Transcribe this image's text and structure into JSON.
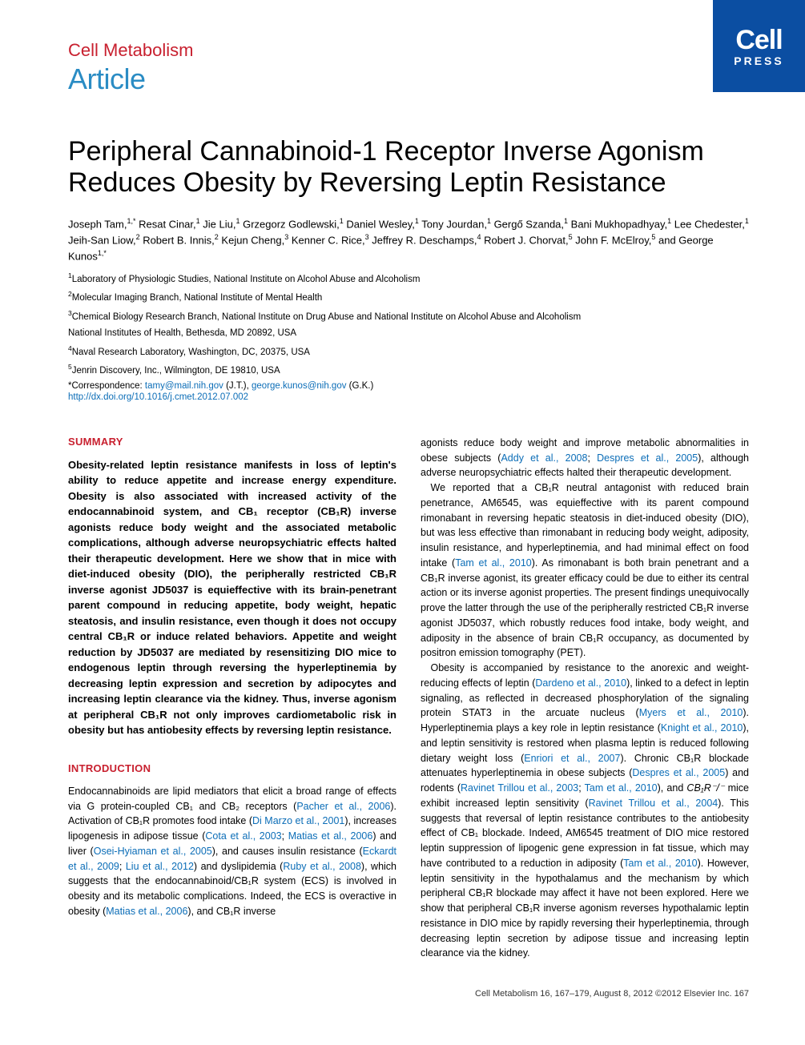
{
  "header": {
    "journal": "Cell Metabolism",
    "label": "Article",
    "logo_top": "Cell",
    "logo_bottom": "PRESS"
  },
  "title": "Peripheral Cannabinoid-1 Receptor Inverse Agonism Reduces Obesity by Reversing Leptin Resistance",
  "authors_html": "Joseph Tam,<sup>1,*</sup> Resat Cinar,<sup>1</sup> Jie Liu,<sup>1</sup> Grzegorz Godlewski,<sup>1</sup> Daniel Wesley,<sup>1</sup> Tony Jourdan,<sup>1</sup> Gergő Szanda,<sup>1</sup> Bani Mukhopadhyay,<sup>1</sup> Lee Chedester,<sup>1</sup> Jeih-San Liow,<sup>2</sup> Robert B. Innis,<sup>2</sup> Kejun Cheng,<sup>3</sup> Kenner C. Rice,<sup>3</sup> Jeffrey R. Deschamps,<sup>4</sup> Robert J. Chorvat,<sup>5</sup> John F. McElroy,<sup>5</sup> and George Kunos<sup>1,*</sup>",
  "affiliations": [
    "<sup>1</sup>Laboratory of Physiologic Studies, National Institute on Alcohol Abuse and Alcoholism",
    "<sup>2</sup>Molecular Imaging Branch, National Institute of Mental Health",
    "<sup>3</sup>Chemical Biology Research Branch, National Institute on Drug Abuse and National Institute on Alcohol Abuse and Alcoholism",
    "National Institutes of Health, Bethesda, MD 20892, USA",
    "<sup>4</sup>Naval Research Laboratory, Washington, DC, 20375, USA",
    "<sup>5</sup>Jenrin Discovery, Inc., Wilmington, DE 19810, USA"
  ],
  "corr_prefix": "*Correspondence: ",
  "corr_email1": "tamy@mail.nih.gov",
  "corr_mid": " (J.T.), ",
  "corr_email2": "george.kunos@nih.gov",
  "corr_suffix": " (G.K.)",
  "doi": "http://dx.doi.org/10.1016/j.cmet.2012.07.002",
  "sections": {
    "summary_head": "SUMMARY",
    "summary": "Obesity-related leptin resistance manifests in loss of leptin's ability to reduce appetite and increase energy expenditure. Obesity is also associated with increased activity of the endocannabinoid system, and CB₁ receptor (CB₁R) inverse agonists reduce body weight and the associated metabolic complications, although adverse neuropsychiatric effects halted their therapeutic development. Here we show that in mice with diet-induced obesity (DIO), the peripherally restricted CB₁R inverse agonist JD5037 is equieffective with its brain-penetrant parent compound in reducing appetite, body weight, hepatic steatosis, and insulin resistance, even though it does not occupy central CB₁R or induce related behaviors. Appetite and weight reduction by JD5037 are mediated by resensitizing DIO mice to endogenous leptin through reversing the hyperleptinemia by decreasing leptin expression and secretion by adipocytes and increasing leptin clearance via the kidney. Thus, inverse agonism at peripheral CB₁R not only improves cardiometabolic risk in obesity but has antiobesity effects by reversing leptin resistance.",
    "intro_head": "INTRODUCTION",
    "intro_left": "Endocannabinoids are lipid mediators that elicit a broad range of effects via G protein-coupled CB₁ and CB₂ receptors (<span class='ref'>Pacher et al., 2006</span>). Activation of CB₁R promotes food intake (<span class='ref'>Di Marzo et al., 2001</span>), increases lipogenesis in adipose tissue (<span class='ref'>Cota et al., 2003</span>; <span class='ref'>Matias et al., 2006</span>) and liver (<span class='ref'>Osei-Hyiaman et al., 2005</span>), and causes insulin resistance (<span class='ref'>Eckardt et al., 2009</span>; <span class='ref'>Liu et al., 2012</span>) and dyslipidemia (<span class='ref'>Ruby et al., 2008</span>), which suggests that the endocannabinoid/CB₁R system (ECS) is involved in obesity and its metabolic complications. Indeed, the ECS is overactive in obesity (<span class='ref'>Matias et al., 2006</span>), and CB₁R inverse",
    "intro_right_p1": "agonists reduce body weight and improve metabolic abnormalities in obese subjects (<span class='ref'>Addy et al., 2008</span>; <span class='ref'>Despres et al., 2005</span>), although adverse neuropsychiatric effects halted their therapeutic development.",
    "intro_right_p2": "We reported that a CB₁R neutral antagonist with reduced brain penetrance, AM6545, was equieffective with its parent compound rimonabant in reversing hepatic steatosis in diet-induced obesity (DIO), but was less effective than rimonabant in reducing body weight, adiposity, insulin resistance, and hyperleptinemia, and had minimal effect on food intake (<span class='ref'>Tam et al., 2010</span>). As rimonabant is both brain penetrant and a CB₁R inverse agonist, its greater efficacy could be due to either its central action or its inverse agonist properties. The present findings unequivocally prove the latter through the use of the peripherally restricted CB₁R inverse agonist JD5037, which robustly reduces food intake, body weight, and adiposity in the absence of brain CB₁R occupancy, as documented by positron emission tomography (PET).",
    "intro_right_p3": "Obesity is accompanied by resistance to the anorexic and weight-reducing effects of leptin (<span class='ref'>Dardeno et al., 2010</span>), linked to a defect in leptin signaling, as reflected in decreased phosphorylation of the signaling protein STAT3 in the arcuate nucleus (<span class='ref'>Myers et al., 2010</span>). Hyperleptinemia plays a key role in leptin resistance (<span class='ref'>Knight et al., 2010</span>), and leptin sensitivity is restored when plasma leptin is reduced following dietary weight loss (<span class='ref'>Enriori et al., 2007</span>). Chronic CB₁R blockade attenuates hyperleptinemia in obese subjects (<span class='ref'>Despres et al., 2005</span>) and rodents (<span class='ref'>Ravinet Trillou et al., 2003</span>; <span class='ref'>Tam et al., 2010</span>), and <i>CB₁R⁻/⁻</i> mice exhibit increased leptin sensitivity (<span class='ref'>Ravinet Trillou et al., 2004</span>). This suggests that reversal of leptin resistance contributes to the antiobesity effect of CB₁ blockade. Indeed, AM6545 treatment of DIO mice restored leptin suppression of lipogenic gene expression in fat tissue, which may have contributed to a reduction in adiposity (<span class='ref'>Tam et al., 2010</span>). However, leptin sensitivity in the hypothalamus and the mechanism by which peripheral CB₁R blockade may affect it have not been explored. Here we show that peripheral CB₁R inverse agonism reverses hypothalamic leptin resistance in DIO mice by rapidly reversing their hyperleptinemia, through decreasing leptin secretion by adipose tissue and increasing leptin clearance via the kidney."
  },
  "footer": "Cell Metabolism 16, 167–179, August 8, 2012 ©2012 Elsevier Inc.   167",
  "colors": {
    "red": "#c8202f",
    "blue_text": "#2a8cc4",
    "link": "#0b6db7",
    "logo_bg": "#0b4ea2"
  }
}
